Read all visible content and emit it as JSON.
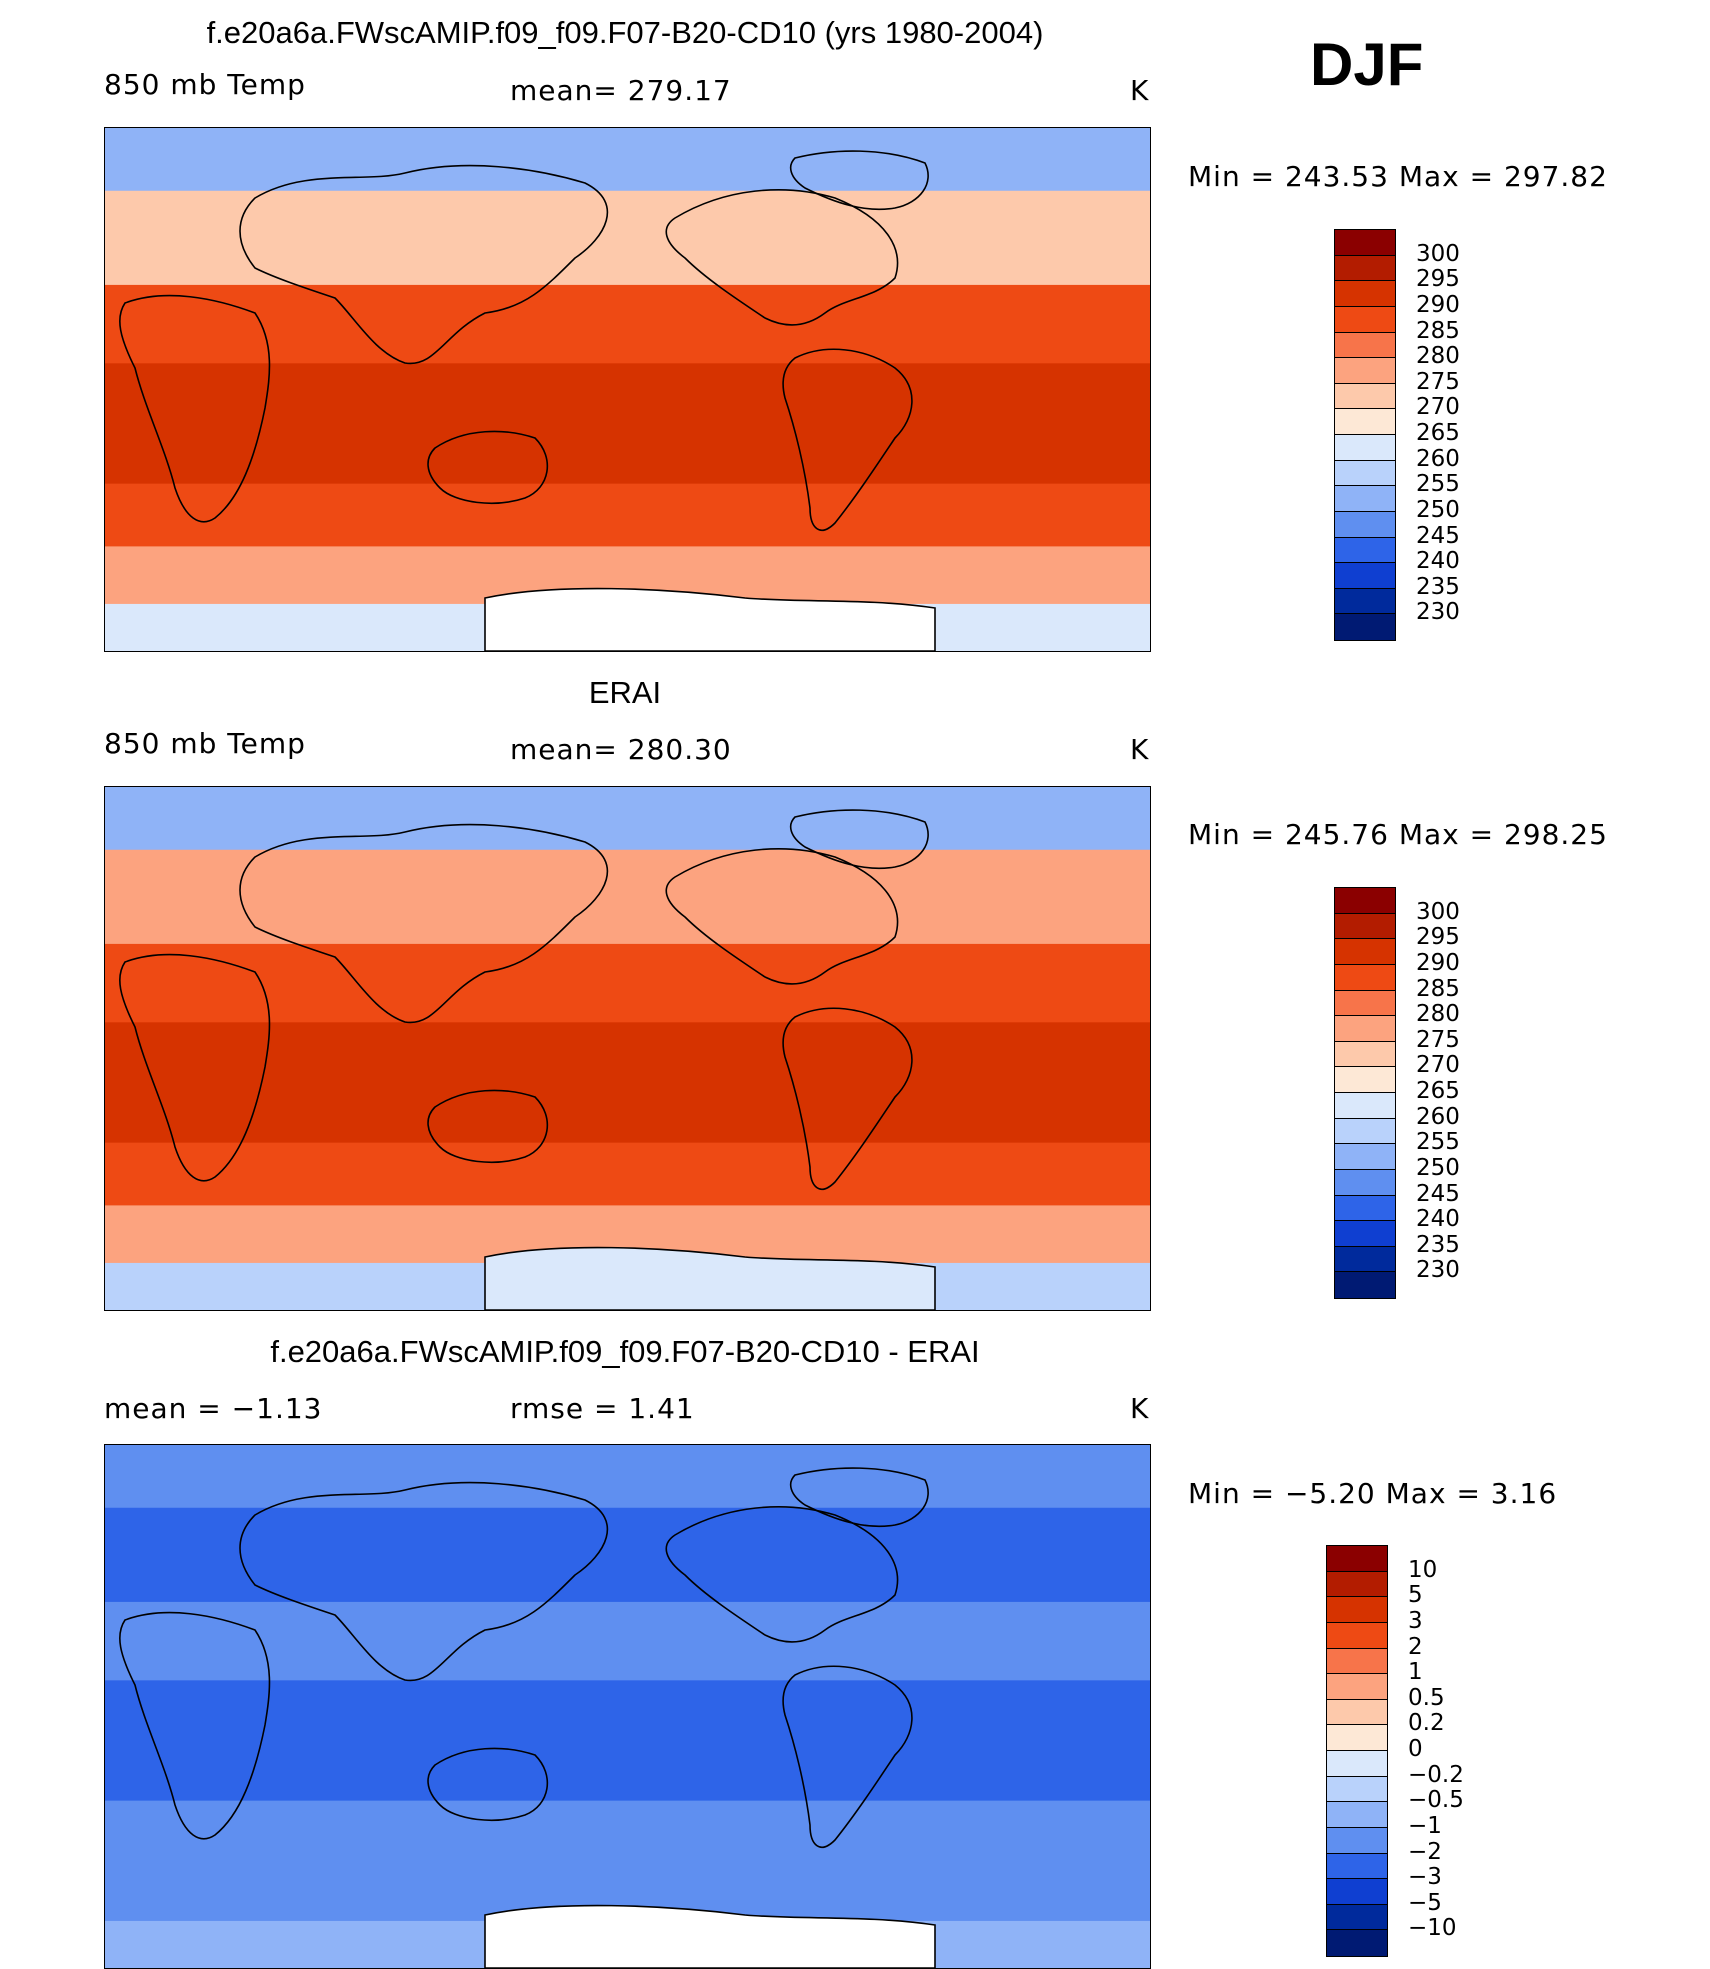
{
  "season": "DJF",
  "panels": [
    {
      "title": "f.e20a6a.FWscAMIP.f09_f09.F07-B20-CD10 (yrs 1980-2004)",
      "left_label": "850 mb Temp",
      "center_label": "mean=  279.17",
      "units": "K",
      "min_max": "Min  =  243.53  Max  =  297.82",
      "levels": [
        "300",
        "295",
        "290",
        "285",
        "280",
        "275",
        "270",
        "265",
        "260",
        "255",
        "250",
        "245",
        "240",
        "235",
        "230"
      ],
      "colors": [
        "#8b0000",
        "#b31c00",
        "#d63300",
        "#ee4a14",
        "#f7744a",
        "#fca37f",
        "#fdc9ab",
        "#fde8d6",
        "#dae8fb",
        "#b9d2fb",
        "#8fb3f7",
        "#5f8ff0",
        "#2e64e8",
        "#0f3fd1",
        "#002a9c",
        "#001a73"
      ],
      "map_fills": {
        "npole": "#8fb3f7",
        "nmid": "#fdc9ab",
        "trop": "#ee4a14",
        "deep": "#d63300",
        "smid": "#fca37f",
        "spole": "#dae8fb"
      }
    },
    {
      "title": "ERAI",
      "left_label": "850 mb Temp",
      "center_label": "mean=  280.30",
      "units": "K",
      "min_max": "Min  =  245.76  Max  =  298.25",
      "levels": [
        "300",
        "295",
        "290",
        "285",
        "280",
        "275",
        "270",
        "265",
        "260",
        "255",
        "250",
        "245",
        "240",
        "235",
        "230"
      ],
      "colors": [
        "#8b0000",
        "#b31c00",
        "#d63300",
        "#ee4a14",
        "#f7744a",
        "#fca37f",
        "#fdc9ab",
        "#fde8d6",
        "#dae8fb",
        "#b9d2fb",
        "#8fb3f7",
        "#5f8ff0",
        "#2e64e8",
        "#0f3fd1",
        "#002a9c",
        "#001a73"
      ],
      "map_fills": {
        "npole": "#8fb3f7",
        "nmid": "#fca37f",
        "trop": "#ee4a14",
        "deep": "#d63300",
        "smid": "#fca37f",
        "spole": "#b9d2fb"
      }
    },
    {
      "title": "f.e20a6a.FWscAMIP.f09_f09.F07-B20-CD10 - ERAI",
      "left_label": "mean  =    −1.13",
      "center_label": "rmse  =     1.41",
      "units": "K",
      "min_max": "Min  =    −5.20  Max  =      3.16",
      "levels": [
        "10",
        "5",
        "3",
        "2",
        "1",
        "0.5",
        "0.2",
        "0",
        "−0.2",
        "−0.5",
        "−1",
        "−2",
        "−3",
        "−5",
        "−10"
      ],
      "colors": [
        "#8b0000",
        "#b31c00",
        "#d63300",
        "#ee4a14",
        "#f7744a",
        "#fca37f",
        "#fdc9ab",
        "#fde8d6",
        "#dae8fb",
        "#b9d2fb",
        "#8fb3f7",
        "#5f8ff0",
        "#2e64e8",
        "#0f3fd1",
        "#002a9c",
        "#001a73"
      ],
      "map_fills": {
        "npole": "#5f8ff0",
        "nmid": "#2e64e8",
        "trop": "#5f8ff0",
        "deep": "#2e64e8",
        "smid": "#5f8ff0",
        "spole": "#8fb3f7"
      }
    }
  ]
}
